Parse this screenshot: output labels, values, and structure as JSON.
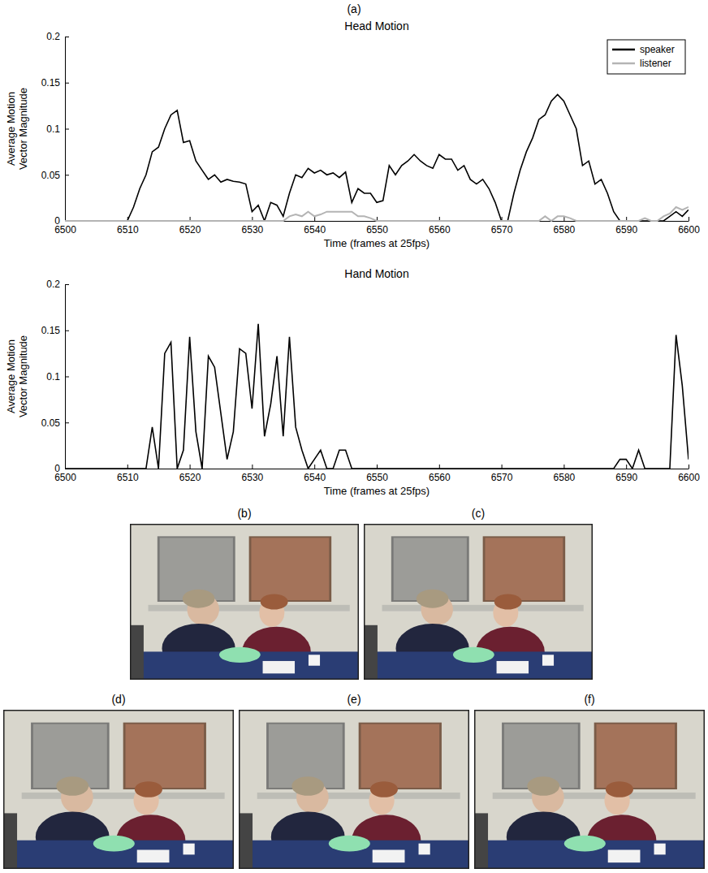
{
  "chart_data": [
    {
      "type": "line",
      "title": "Head Motion",
      "x_label": "Time (frames at 25fps)",
      "y_label": "Average Motion Vector Magnitude",
      "x": [
        6500,
        6501,
        6502,
        6503,
        6504,
        6505,
        6506,
        6507,
        6508,
        6509,
        6510,
        6511,
        6512,
        6513,
        6514,
        6515,
        6516,
        6517,
        6518,
        6519,
        6520,
        6521,
        6522,
        6523,
        6524,
        6525,
        6526,
        6527,
        6528,
        6529,
        6530,
        6531,
        6532,
        6533,
        6534,
        6535,
        6536,
        6537,
        6538,
        6539,
        6540,
        6541,
        6542,
        6543,
        6544,
        6545,
        6546,
        6547,
        6548,
        6549,
        6550,
        6551,
        6552,
        6553,
        6554,
        6555,
        6556,
        6557,
        6558,
        6559,
        6560,
        6561,
        6562,
        6563,
        6564,
        6565,
        6566,
        6567,
        6568,
        6569,
        6570,
        6571,
        6572,
        6573,
        6574,
        6575,
        6576,
        6577,
        6578,
        6579,
        6580,
        6581,
        6582,
        6583,
        6584,
        6585,
        6586,
        6587,
        6588,
        6589,
        6590,
        6591,
        6592,
        6593,
        6594,
        6595,
        6596,
        6597,
        6598,
        6599,
        6600
      ],
      "series": [
        {
          "name": "speaker",
          "color": "#000000",
          "values": [
            0,
            0,
            0,
            0,
            0,
            0,
            0,
            0,
            0,
            0,
            0,
            0.015,
            0.035,
            0.05,
            0.075,
            0.08,
            0.1,
            0.115,
            0.12,
            0.085,
            0.087,
            0.065,
            0.055,
            0.045,
            0.05,
            0.042,
            0.045,
            0.043,
            0.042,
            0.04,
            0.01,
            0.017,
            0,
            0.02,
            0.017,
            0.005,
            0.03,
            0.05,
            0.047,
            0.057,
            0.052,
            0.055,
            0.05,
            0.052,
            0.047,
            0.053,
            0.02,
            0.035,
            0.03,
            0.03,
            0.02,
            0.022,
            0.06,
            0.05,
            0.06,
            0.065,
            0.072,
            0.065,
            0.06,
            0.057,
            0.072,
            0.067,
            0.067,
            0.055,
            0.06,
            0.045,
            0.04,
            0.045,
            0.035,
            0.02,
            0,
            0,
            0.03,
            0.055,
            0.075,
            0.09,
            0.11,
            0.115,
            0.13,
            0.137,
            0.13,
            0.115,
            0.1,
            0.06,
            0.065,
            0.04,
            0.045,
            0.03,
            0.01,
            0,
            0,
            0,
            0,
            0,
            0,
            0,
            0,
            0.005,
            0.01,
            0.005,
            0.012
          ]
        },
        {
          "name": "listener",
          "color": "#b4b4b4",
          "values": [
            0,
            0,
            0,
            0,
            0,
            0,
            0,
            0,
            0,
            0,
            0,
            0,
            0,
            0,
            0,
            0,
            0,
            0,
            0,
            0,
            0,
            0,
            0,
            0,
            0,
            0,
            0,
            0,
            0,
            0,
            0,
            0,
            0,
            0,
            0,
            0,
            0.005,
            0.007,
            0.005,
            0.01,
            0.005,
            0.007,
            0.01,
            0.01,
            0.01,
            0.01,
            0.01,
            0.005,
            0.005,
            0.003,
            0,
            0,
            0,
            0,
            0,
            0,
            0,
            0,
            0,
            0,
            0,
            0,
            0,
            0,
            0,
            0,
            0,
            0,
            0,
            0,
            0,
            0,
            0,
            0,
            0,
            0,
            0,
            0.005,
            0,
            0.005,
            0.005,
            0.003,
            0,
            0,
            0,
            0,
            0,
            0,
            0,
            0,
            0,
            0,
            0,
            0.003,
            0,
            0,
            0.005,
            0.008,
            0.015,
            0.012,
            0.015
          ]
        }
      ],
      "xlim": [
        6500,
        6600
      ],
      "xticks": [
        6500,
        6510,
        6520,
        6530,
        6540,
        6550,
        6560,
        6570,
        6580,
        6590,
        6600
      ],
      "ylim": [
        0,
        0.2
      ],
      "yticks": [
        0,
        0.05,
        0.1,
        0.15,
        0.2
      ],
      "legend": "upper right"
    },
    {
      "type": "line",
      "title": "Hand Motion",
      "x_label": "Time (frames at 25fps)",
      "y_label": "Average Motion Vector Magnitude",
      "x": [
        6500,
        6501,
        6502,
        6503,
        6504,
        6505,
        6506,
        6507,
        6508,
        6509,
        6510,
        6511,
        6512,
        6513,
        6514,
        6515,
        6516,
        6517,
        6518,
        6519,
        6520,
        6521,
        6522,
        6523,
        6524,
        6525,
        6526,
        6527,
        6528,
        6529,
        6530,
        6531,
        6532,
        6533,
        6534,
        6535,
        6536,
        6537,
        6538,
        6539,
        6540,
        6541,
        6542,
        6543,
        6544,
        6545,
        6546,
        6547,
        6548,
        6549,
        6550,
        6551,
        6552,
        6553,
        6554,
        6555,
        6556,
        6557,
        6558,
        6559,
        6560,
        6561,
        6562,
        6563,
        6564,
        6565,
        6566,
        6567,
        6568,
        6569,
        6570,
        6571,
        6572,
        6573,
        6574,
        6575,
        6576,
        6577,
        6578,
        6579,
        6580,
        6581,
        6582,
        6583,
        6584,
        6585,
        6586,
        6587,
        6588,
        6589,
        6590,
        6591,
        6592,
        6593,
        6594,
        6595,
        6596,
        6597,
        6598,
        6599,
        6600
      ],
      "series": [
        {
          "color": "#000000",
          "values": [
            0,
            0,
            0,
            0,
            0,
            0,
            0,
            0,
            0,
            0,
            0,
            0,
            0,
            0,
            0.045,
            0,
            0.125,
            0.137,
            0,
            0.02,
            0.143,
            0.04,
            0,
            0.122,
            0.11,
            0.06,
            0.01,
            0.04,
            0.13,
            0.125,
            0.065,
            0.157,
            0.035,
            0.07,
            0.122,
            0.035,
            0.143,
            0.045,
            0.02,
            0,
            0.01,
            0.02,
            0,
            0,
            0.02,
            0.02,
            0,
            0,
            0,
            0,
            0,
            0,
            0,
            0,
            0,
            0,
            0,
            0,
            0,
            0,
            0,
            0,
            0,
            0,
            0,
            0,
            0,
            0,
            0,
            0,
            0,
            0,
            0,
            0,
            0,
            0,
            0,
            0,
            0,
            0,
            0,
            0,
            0,
            0,
            0,
            0,
            0,
            0,
            0,
            0.01,
            0.01,
            0,
            0.02,
            0,
            0,
            0,
            0,
            0,
            0.145,
            0.09,
            0.01
          ]
        }
      ],
      "xlim": [
        6500,
        6600
      ],
      "xticks": [
        6500,
        6510,
        6520,
        6530,
        6540,
        6550,
        6560,
        6570,
        6580,
        6590,
        6600
      ],
      "ylim": [
        0,
        0.2
      ],
      "yticks": [
        0,
        0.05,
        0.1,
        0.15,
        0.2
      ]
    }
  ],
  "panels": [
    "(a)",
    "(b)",
    "(c)",
    "(d)",
    "(e)",
    "(f)"
  ]
}
